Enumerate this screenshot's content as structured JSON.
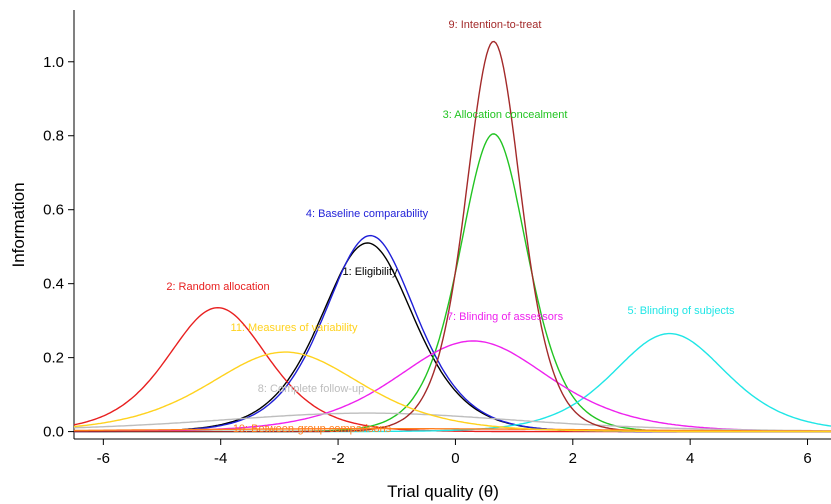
{
  "chart_data": {
    "type": "line",
    "title": "",
    "xlabel": "Trial quality (θ)",
    "ylabel": "Information",
    "xlim": [
      -6.5,
      6.4
    ],
    "ylim": [
      -0.02,
      1.14
    ],
    "xticks": [
      -6,
      -4,
      -2,
      0,
      2,
      4,
      6
    ],
    "yticks": [
      0.0,
      0.2,
      0.4,
      0.6,
      0.8,
      1.0
    ],
    "xtick_labels": [
      "-6",
      "-4",
      "-2",
      "0",
      "2",
      "4",
      "6"
    ],
    "ytick_labels": [
      "0.0",
      "0.2",
      "0.4",
      "0.6",
      "0.8",
      "1.0"
    ],
    "grid": false,
    "legend": "none (series labelled directly on the plot)",
    "series": [
      {
        "name": "1: Eligibility",
        "color": "#000000",
        "peak_x": -1.5,
        "peak_y": 0.51,
        "width": 1.07
      },
      {
        "name": "2: Random allocation",
        "color": "#e82020",
        "peak_x": -4.05,
        "peak_y": 0.335,
        "width": 1.15
      },
      {
        "name": "3: Allocation concealment",
        "color": "#22c422",
        "peak_x": 0.65,
        "peak_y": 0.805,
        "width": 0.78
      },
      {
        "name": "4: Baseline comparability",
        "color": "#1f1fd8",
        "peak_x": -1.45,
        "peak_y": 0.53,
        "width": 1.05
      },
      {
        "name": "5: Blinding of subjects",
        "color": "#1fe6e6",
        "peak_x": 3.65,
        "peak_y": 0.265,
        "width": 1.3
      },
      {
        "name": "7: Blinding of assessors",
        "color": "#ee22ee",
        "peak_x": 0.3,
        "peak_y": 0.245,
        "width": 1.75
      },
      {
        "name": "8: Complete follow-up",
        "color": "#bdbdbd",
        "peak_x": -1.5,
        "peak_y": 0.05,
        "width": 3.5
      },
      {
        "name": "9: Intention-to-treat",
        "color": "#a32a2a",
        "peak_x": 0.65,
        "peak_y": 1.055,
        "width": 0.64
      },
      {
        "name": "10: Between-group comparisons",
        "color": "#ff7f1e",
        "peak_x": -1.3,
        "peak_y": 0.008,
        "width": 5.0
      },
      {
        "name": "11: Measures of variability",
        "color": "#ffd21e",
        "peak_x": -2.9,
        "peak_y": 0.215,
        "width": 1.75
      }
    ]
  }
}
